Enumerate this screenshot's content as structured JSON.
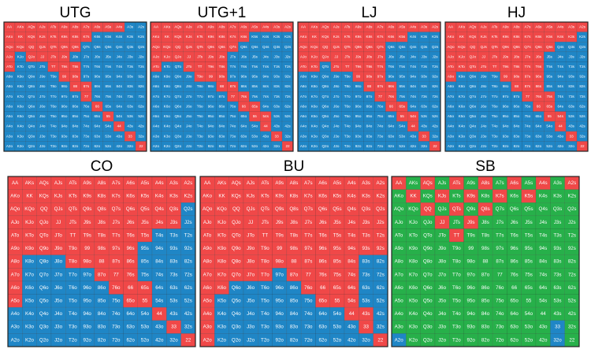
{
  "hands": [
    [
      "AA",
      "AKs",
      "AQs",
      "AJs",
      "ATs",
      "A9s",
      "A8s",
      "A7s",
      "A6s",
      "A5s",
      "A4s",
      "A3s",
      "A2s"
    ],
    [
      "AKo",
      "KK",
      "KQs",
      "KJs",
      "KTs",
      "K9s",
      "K8s",
      "K7s",
      "K6s",
      "K5s",
      "K4s",
      "K3s",
      "K2s"
    ],
    [
      "AQo",
      "KQo",
      "QQ",
      "QJs",
      "QTs",
      "Q9s",
      "Q8s",
      "Q7s",
      "Q6s",
      "Q5s",
      "Q4s",
      "Q3s",
      "Q2s"
    ],
    [
      "AJo",
      "KJo",
      "QJo",
      "JJ",
      "JTs",
      "J9s",
      "J8s",
      "J7s",
      "J6s",
      "J5s",
      "J4s",
      "J3s",
      "J2s"
    ],
    [
      "ATo",
      "KTo",
      "QTo",
      "JTo",
      "TT",
      "T9s",
      "T8s",
      "T7s",
      "T6s",
      "T5s",
      "T4s",
      "T3s",
      "T2s"
    ],
    [
      "A9o",
      "K9o",
      "Q9o",
      "J9o",
      "T9o",
      "99",
      "98s",
      "97s",
      "96s",
      "95s",
      "94s",
      "93s",
      "92s"
    ],
    [
      "A8o",
      "K8o",
      "Q8o",
      "J8o",
      "T8o",
      "98o",
      "88",
      "87s",
      "86s",
      "85s",
      "84s",
      "83s",
      "82s"
    ],
    [
      "A7o",
      "K7o",
      "Q7o",
      "J7o",
      "T7o",
      "97o",
      "87o",
      "77",
      "76s",
      "75s",
      "74s",
      "73s",
      "72s"
    ],
    [
      "A6o",
      "K6o",
      "Q6o",
      "J6o",
      "T6o",
      "96o",
      "86o",
      "76o",
      "66",
      "65s",
      "64s",
      "63s",
      "62s"
    ],
    [
      "A5o",
      "K5o",
      "Q5o",
      "J5o",
      "T5o",
      "95o",
      "85o",
      "75o",
      "65o",
      "55",
      "54s",
      "53s",
      "52s"
    ],
    [
      "A4o",
      "K4o",
      "Q4o",
      "J4o",
      "T4o",
      "94o",
      "84o",
      "74o",
      "64o",
      "54o",
      "44",
      "43s",
      "42s"
    ],
    [
      "A3o",
      "K3o",
      "Q3o",
      "J3o",
      "T3o",
      "93o",
      "83o",
      "73o",
      "63o",
      "53o",
      "43o",
      "33",
      "32s"
    ],
    [
      "A2o",
      "K2o",
      "Q2o",
      "J2o",
      "T2o",
      "92o",
      "82o",
      "72o",
      "62o",
      "52o",
      "42o",
      "32o",
      "22"
    ]
  ],
  "colors": {
    "R": "#f04848",
    "B": "#1f86c6",
    "G": "#27b04a"
  },
  "grids": [
    {
      "title": "UTG",
      "actions": [
        "RRRRRRRRRRRBB",
        "RRRRRRRRBBBBB",
        "RRRRRRRBBBBBB",
        "RBRRRRBBBBBBB",
        "RBBBRRRBBBBBB",
        "BBBBBRRBBBBBB",
        "BBBBBBRRBBBBB",
        "BBBBBBBRBBBBB",
        "BBBBBBBBRBBBB",
        "BBBBBBBBBRBBB",
        "BBBBBBBBBBRBB",
        "BBBBBBBBBBBRB",
        "BBBBBBBBBBBBR"
      ]
    },
    {
      "title": "UTG+1",
      "actions": [
        "RRRRRRRRRRRRR",
        "RRRRRRRRRBBBB",
        "RRRRRRRRBBBBB",
        "RRRRRRRBBBBBB",
        "RBBRRRRBBBBBB",
        "BBBBRRRBBBBBB",
        "BBBBBBRRBBBBB",
        "BBBBBBBRRBBBB",
        "BBBBBBBBRRBBB",
        "BBBBBBBBBRRBB",
        "BBBBBBBBBBRBB",
        "BBBBBBBBBBBRB",
        "BBBBBBBBBBBBR"
      ]
    },
    {
      "title": "LJ",
      "actions": [
        "RRRRRRRRRRRRR",
        "RRRRRRRRRRBBB",
        "RRRRRRRRBBBBB",
        "RRRRRRRRBBBBB",
        "RRBRRRRRBBBBB",
        "BBBBBRRRBBBBB",
        "BBBBBBRRRBBBB",
        "BBBBBBBRRBBBB",
        "BBBBBBBBRRBBB",
        "BBBBBBBBBRRBB",
        "BBBBBBBBBBRBB",
        "BBBBBBBBBBBRB",
        "BBBBBBBBBBBBR"
      ]
    },
    {
      "title": "HJ",
      "actions": [
        "RRRRRRRRRRRRR",
        "RRRRRRRRRRRRB",
        "RRRRRRRRRRBBB",
        "RRRRRRRRRBBBB",
        "RRRRRRRRRBBBB",
        "RBBBBRRRRBBBB",
        "BBBBBBRRRBBBB",
        "BBBBBBBRRRBBB",
        "BBBBBBBBRRBBB",
        "BBBBBBBBBRRBB",
        "BBBBBBBBBBRBB",
        "BBBBBBBBBBBRB",
        "BBBBBBBBBBBBR"
      ]
    },
    {
      "title": "CO",
      "actions": [
        "RRRRRRRRRRRRR",
        "RRRRRRRRRRRRR",
        "RRRRRRRRRRRRB",
        "RRRRRRRRRRRRB",
        "RRRRRRRRRRBBB",
        "RRRRRRRRRBBBB",
        "RBBBRRRRRBBBB",
        "RBBBBBRRRBBBB",
        "RBBBBBBRRRBBB",
        "RBBBBBBBRRBBB",
        "BBBBBBBBBBRBB",
        "BBBBBBBBBBBRB",
        "BBBBBBBBBBBBR"
      ]
    },
    {
      "title": "BU",
      "actions": [
        "RRRRRRRRRRRRR",
        "RRRRRRRRRRRRR",
        "RRRRRRRRRRRRR",
        "RRRRRRRRRRRRR",
        "RRRRRRRRRRRRR",
        "RRRRRRRRRRRRR",
        "RRRRRRRRRRRBB",
        "RRRRRBRRRRRBB",
        "RRBBBBBRRRRBB",
        "RBBBBBBBRRRBB",
        "RBBBBBBBBBRRB",
        "RBBBBBBBBBBRB",
        "RBBBBBBBBBBBR"
      ]
    },
    {
      "title": "SB",
      "actions": [
        "RGRGRGRGRGRGR",
        "GRGRGRGRGRGGG",
        "GGRGRGRGGGGGG",
        "GGGRGRGGGGGGG",
        "GGGGRGGGGGGGG",
        "GGGGGGGGGGGGG",
        "GGGGGGGGGGGGG",
        "GGGGGGGGGGGGG",
        "GGGGGGGGGGGGG",
        "GGGGGGGGGGGGG",
        "GGGGGGGGGGGGG",
        "GGGGGGGGGGGBG",
        "BGGGGGGGGGGBG"
      ]
    }
  ]
}
